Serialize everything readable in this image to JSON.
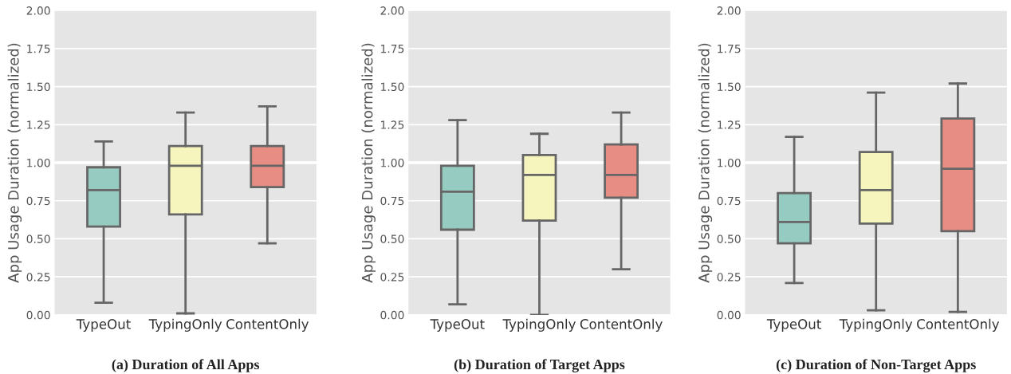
{
  "chart_data": [
    {
      "type": "box",
      "title": "(a) Duration of All Apps",
      "ylabel": "App Usage Duration (normalized)",
      "categories": [
        "TypeOut",
        "TypingOnly",
        "ContentOnly"
      ],
      "colors": [
        "#96cbc2",
        "#f5f5bd",
        "#e88d83"
      ],
      "boxes": [
        {
          "low": 0.08,
          "q1": 0.58,
          "median": 0.82,
          "q3": 0.97,
          "high": 1.14
        },
        {
          "low": 0.01,
          "q1": 0.66,
          "median": 0.98,
          "q3": 1.11,
          "high": 1.33
        },
        {
          "low": 0.47,
          "q1": 0.84,
          "median": 0.98,
          "q3": 1.11,
          "high": 1.37
        }
      ],
      "ylim": [
        0,
        2
      ],
      "yticks": [
        {
          "value": 0,
          "label": "0.00"
        },
        {
          "value": 0.25,
          "label": "0.25"
        },
        {
          "value": 0.5,
          "label": "0.50"
        },
        {
          "value": 0.75,
          "label": "0.75"
        },
        {
          "value": 1,
          "label": "1.00"
        },
        {
          "value": 1.25,
          "label": "1.25"
        },
        {
          "value": 1.5,
          "label": "1.50"
        },
        {
          "value": 1.75,
          "label": "1.75"
        },
        {
          "value": 2,
          "label": "2.00"
        }
      ],
      "grid": "y",
      "ref_lines": [
        {
          "axis": "y",
          "value": 1,
          "color": "#ffffff"
        }
      ]
    },
    {
      "type": "box",
      "title": "(b) Duration of Target Apps",
      "ylabel": "App Usage Duration (normalized)",
      "categories": [
        "TypeOut",
        "TypingOnly",
        "ContentOnly"
      ],
      "colors": [
        "#96cbc2",
        "#f5f5bd",
        "#e88d83"
      ],
      "boxes": [
        {
          "low": 0.07,
          "q1": 0.56,
          "median": 0.81,
          "q3": 0.98,
          "high": 1.28
        },
        {
          "low": 0.0,
          "q1": 0.62,
          "median": 0.92,
          "q3": 1.05,
          "high": 1.19
        },
        {
          "low": 0.3,
          "q1": 0.77,
          "median": 0.92,
          "q3": 1.12,
          "high": 1.33
        }
      ],
      "ylim": [
        0,
        2
      ],
      "yticks": [
        {
          "value": 0,
          "label": "0.00"
        },
        {
          "value": 0.25,
          "label": "0.25"
        },
        {
          "value": 0.5,
          "label": "0.50"
        },
        {
          "value": 0.75,
          "label": "0.75"
        },
        {
          "value": 1,
          "label": "1.00"
        },
        {
          "value": 1.25,
          "label": "1.25"
        },
        {
          "value": 1.5,
          "label": "1.50"
        },
        {
          "value": 1.75,
          "label": "1.75"
        },
        {
          "value": 2,
          "label": "2.00"
        }
      ],
      "grid": "y",
      "ref_lines": [
        {
          "axis": "y",
          "value": 1,
          "color": "#ffffff"
        }
      ]
    },
    {
      "type": "box",
      "title": "(c) Duration of Non-Target Apps",
      "ylabel": "App Usage Duration (normalized)",
      "categories": [
        "TypeOut",
        "TypingOnly",
        "ContentOnly"
      ],
      "colors": [
        "#96cbc2",
        "#f5f5bd",
        "#e88d83"
      ],
      "boxes": [
        {
          "low": 0.21,
          "q1": 0.47,
          "median": 0.61,
          "q3": 0.8,
          "high": 1.17
        },
        {
          "low": 0.03,
          "q1": 0.6,
          "median": 0.82,
          "q3": 1.07,
          "high": 1.46
        },
        {
          "low": 0.02,
          "q1": 0.55,
          "median": 0.96,
          "q3": 1.29,
          "high": 1.52
        }
      ],
      "ylim": [
        0,
        2
      ],
      "yticks": [
        {
          "value": 0,
          "label": "0.00"
        },
        {
          "value": 0.25,
          "label": "0.25"
        },
        {
          "value": 0.5,
          "label": "0.50"
        },
        {
          "value": 0.75,
          "label": "0.75"
        },
        {
          "value": 1,
          "label": "1.00"
        },
        {
          "value": 1.25,
          "label": "1.25"
        },
        {
          "value": 1.5,
          "label": "1.50"
        },
        {
          "value": 1.75,
          "label": "1.75"
        },
        {
          "value": 2,
          "label": "2.00"
        }
      ],
      "grid": "y",
      "ref_lines": [
        {
          "axis": "y",
          "value": 1,
          "color": "#ffffff"
        }
      ]
    }
  ]
}
